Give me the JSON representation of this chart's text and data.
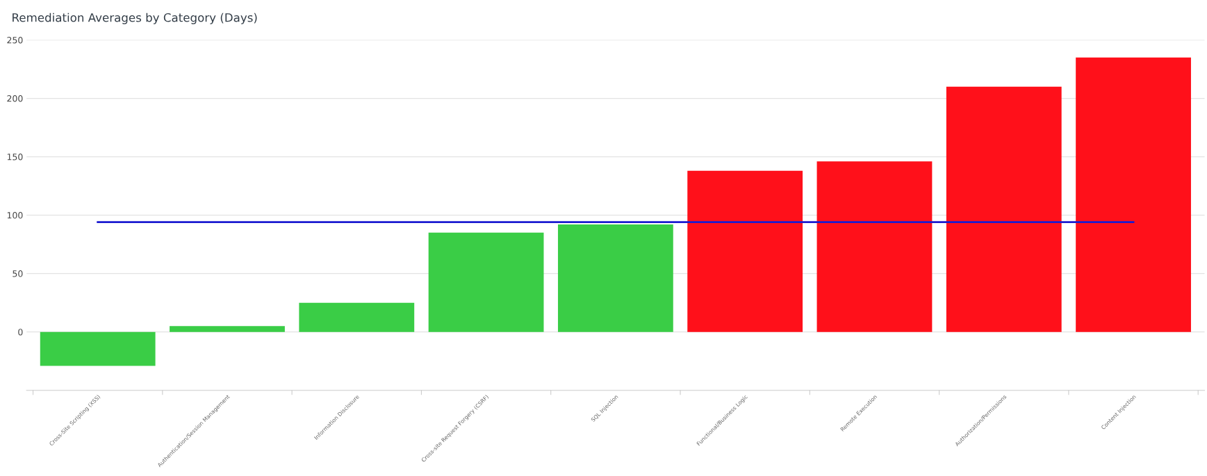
{
  "chart_data": {
    "type": "bar",
    "title": "Remediation Averages by Category (Days)",
    "categories": [
      "Cross-Site Scripting (XSS)",
      "Authentication/Session Management",
      "Information Disclosure",
      "Cross-site Request Forgery (CSRF)",
      "SQL Injection",
      "Functional/Business Logic",
      "Remote Execution",
      "Authorization/Permissions",
      "Content Injection"
    ],
    "series": [
      {
        "values": [
          -29,
          5,
          25,
          85,
          92,
          138,
          146,
          210,
          235
        ],
        "colors": [
          "#3acd46",
          "#3acd46",
          "#3acd46",
          "#3acd46",
          "#3acd46",
          "#ff101a",
          "#ff101a",
          "#ff101a",
          "#ff101a"
        ]
      },
      {
        "type": "line",
        "color": "#1a1ad0",
        "values": [
          94,
          94,
          94,
          94,
          94,
          94,
          94,
          94,
          94
        ]
      }
    ],
    "ylim": [
      -50,
      250
    ],
    "yticks": [
      0,
      50,
      100,
      150,
      200,
      250
    ],
    "grid": "y",
    "marker": "none",
    "line_style": "solid"
  }
}
